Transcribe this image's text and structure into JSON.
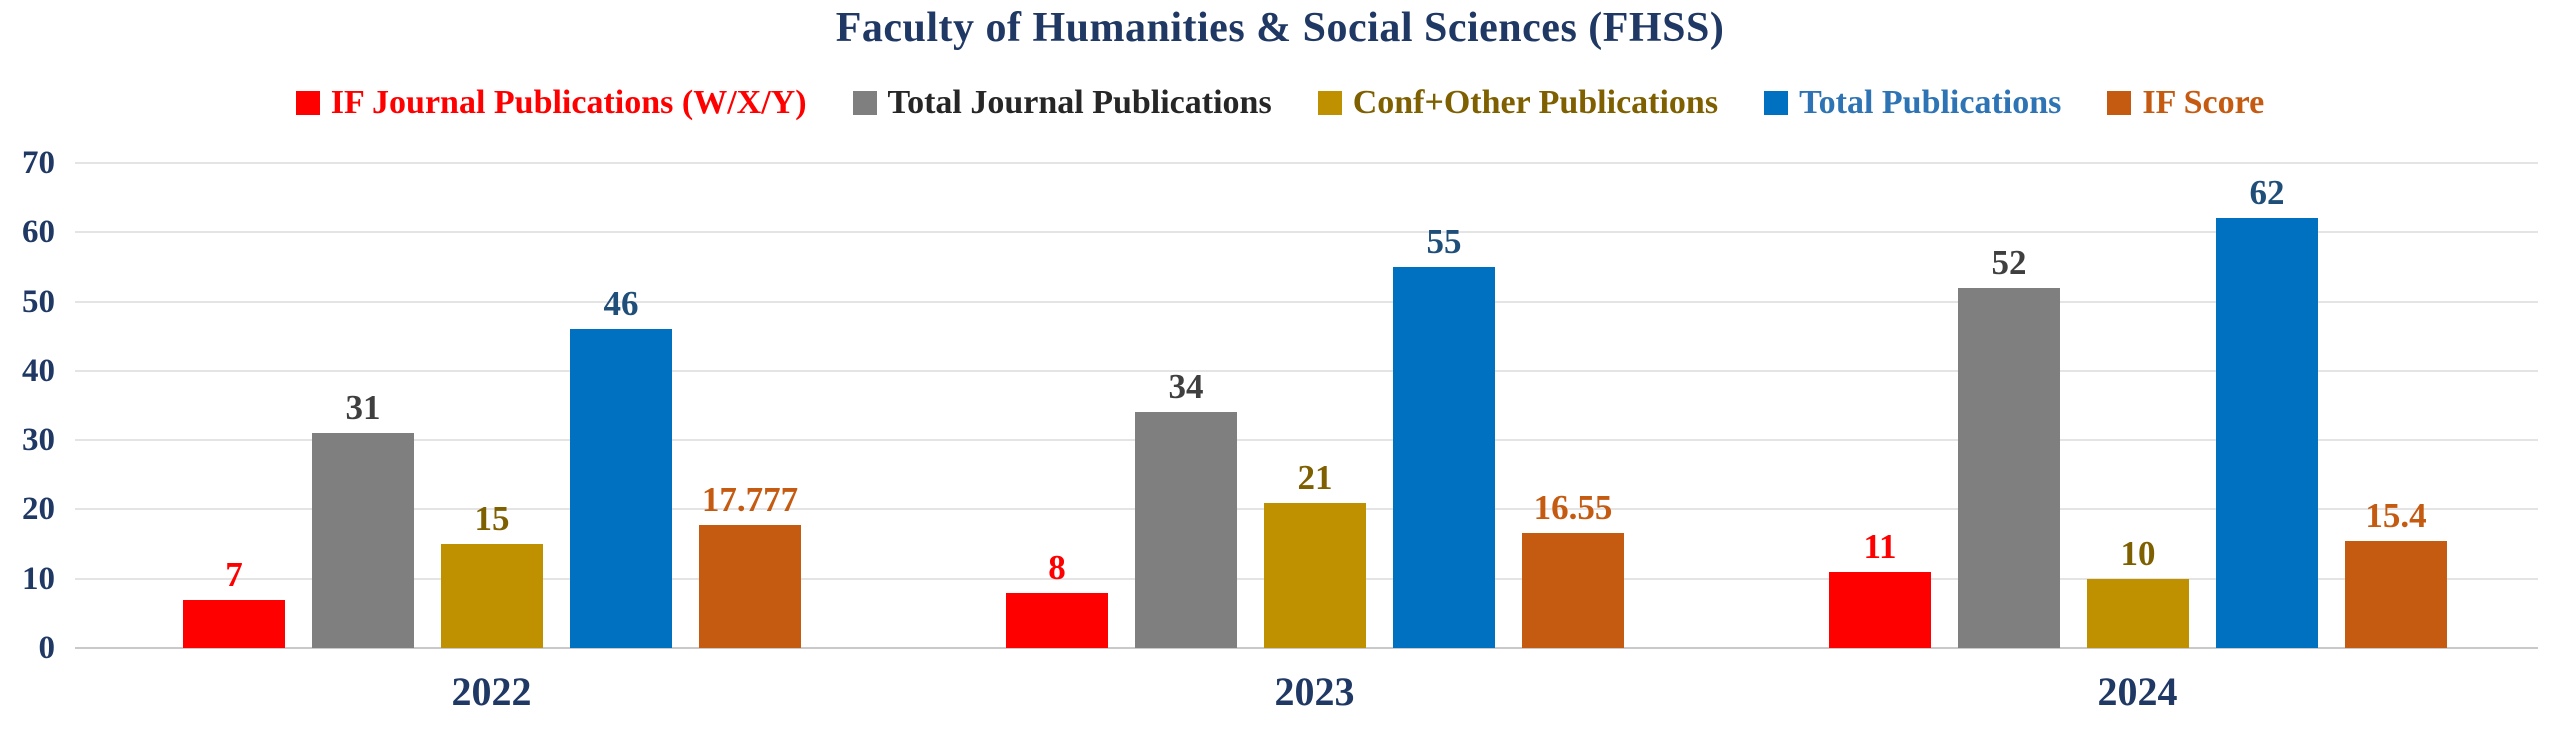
{
  "title": "Faculty of Humanities & Social Sciences  (FHSS)",
  "colors": {
    "title_text": "#1F3864",
    "axis_text": "#1F3864",
    "grid": "#E4E4E4",
    "baseline": "#C9C9C9",
    "background": "#FFFFFF"
  },
  "chart_data": {
    "type": "bar",
    "title": "Faculty of Humanities & Social Sciences  (FHSS)",
    "categories": [
      "2022",
      "2023",
      "2024"
    ],
    "series": [
      {
        "name": "IF Journal Publications (W/X/Y)",
        "color": "#FF0000",
        "label_color": "#FF0000",
        "legend_text_color": "#FF0000",
        "values": [
          7,
          8,
          11
        ],
        "labels": [
          "7",
          "8",
          "11"
        ]
      },
      {
        "name": "Total Journal Publications",
        "color": "#7F7F7F",
        "label_color": "#3F3F3F",
        "legend_text_color": "#262626",
        "values": [
          31,
          34,
          52
        ],
        "labels": [
          "31",
          "34",
          "52"
        ]
      },
      {
        "name": "Conf+Other Publications",
        "color": "#BF9000",
        "label_color": "#7F6000",
        "legend_text_color": "#7F6000",
        "values": [
          15,
          21,
          10
        ],
        "labels": [
          "15",
          "21",
          "10"
        ]
      },
      {
        "name": "Total Publications",
        "color": "#0070C0",
        "label_color": "#1F4E79",
        "legend_text_color": "#2E74B5",
        "values": [
          46,
          55,
          62
        ],
        "labels": [
          "46",
          "55",
          "62"
        ]
      },
      {
        "name": "IF Score",
        "color": "#C55A11",
        "label_color": "#C55A11",
        "legend_text_color": "#C55A11",
        "values": [
          17.777,
          16.55,
          15.4
        ],
        "labels": [
          "17.777",
          "16.55",
          "15.4"
        ]
      }
    ],
    "ylim": [
      0,
      70
    ],
    "yticks": [
      0,
      10,
      20,
      30,
      40,
      50,
      60,
      70
    ],
    "grid": "horizontal",
    "legend_position": "top",
    "xlabel": "",
    "ylabel": ""
  }
}
